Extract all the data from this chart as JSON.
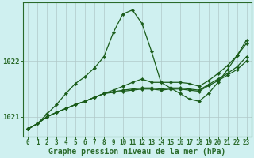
{
  "background_color": "#cff0f0",
  "plot_bg_color": "#cff0f0",
  "grid_color": "#b0c8c8",
  "line_color": "#1a5c1a",
  "xlabel": "Graphe pression niveau de la mer (hPa)",
  "ylabel_ticks": [
    1021,
    1022
  ],
  "x_ticks": [
    0,
    1,
    2,
    3,
    4,
    5,
    6,
    7,
    8,
    9,
    10,
    11,
    12,
    13,
    14,
    15,
    16,
    17,
    18,
    19,
    20,
    21,
    22,
    23
  ],
  "xlim": [
    -0.5,
    23.5
  ],
  "ylim": [
    1020.65,
    1023.05
  ],
  "series": [
    [
      1020.78,
      1020.88,
      1021.05,
      1021.22,
      1021.42,
      1021.6,
      1021.72,
      1021.88,
      1022.08,
      1022.52,
      1022.85,
      1022.92,
      1022.68,
      1022.18,
      1021.62,
      1021.52,
      1021.42,
      1021.32,
      1021.28,
      1021.42,
      1021.62,
      1021.85,
      1022.1,
      1022.38
    ],
    [
      1020.78,
      1020.88,
      1021.0,
      1021.08,
      1021.15,
      1021.22,
      1021.28,
      1021.35,
      1021.42,
      1021.48,
      1021.55,
      1021.62,
      1021.68,
      1021.62,
      1021.62,
      1021.62,
      1021.62,
      1021.6,
      1021.55,
      1021.65,
      1021.78,
      1021.92,
      1022.1,
      1022.32
    ],
    [
      1020.78,
      1020.88,
      1021.0,
      1021.08,
      1021.15,
      1021.22,
      1021.28,
      1021.35,
      1021.42,
      1021.45,
      1021.48,
      1021.5,
      1021.52,
      1021.52,
      1021.5,
      1021.52,
      1021.52,
      1021.5,
      1021.48,
      1021.58,
      1021.68,
      1021.78,
      1021.9,
      1022.08
    ],
    [
      1020.78,
      1020.88,
      1021.0,
      1021.08,
      1021.15,
      1021.22,
      1021.28,
      1021.35,
      1021.42,
      1021.44,
      1021.46,
      1021.48,
      1021.5,
      1021.5,
      1021.48,
      1021.5,
      1021.5,
      1021.48,
      1021.46,
      1021.56,
      1021.65,
      1021.75,
      1021.85,
      1022.0
    ]
  ],
  "marker": "D",
  "marker_size": 2.2,
  "line_width": 0.9,
  "tick_fontsize": 5.5,
  "xlabel_fontsize": 7.0,
  "ytick_fontsize": 6.5,
  "border_color": "#2a6a2a",
  "tick_color": "#2a6a2a"
}
